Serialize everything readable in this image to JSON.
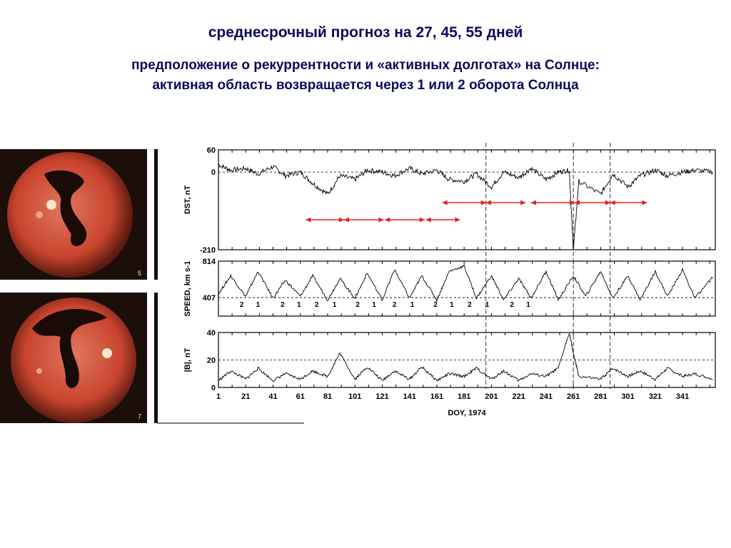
{
  "slide": {
    "title": "среднесрочный прогноз на 27, 45, 55 дней",
    "subtitle_line1": "предположение о рекуррентности и «активных долготах» на Солнце:",
    "subtitle_line2": "активная область возвращается через 1 или 2 оборота Солнца"
  },
  "images": [
    {
      "label": "5"
    },
    {
      "label": "7"
    }
  ],
  "chart_data": [
    {
      "type": "line",
      "ylabel": "DST, nT",
      "ylim": [
        -210,
        60
      ],
      "yticks": [
        "60",
        "0",
        "-210"
      ],
      "reference_line": 0,
      "x": [
        1,
        10,
        21,
        30,
        41,
        50,
        61,
        70,
        81,
        90,
        101,
        110,
        121,
        130,
        141,
        150,
        161,
        170,
        181,
        190,
        201,
        210,
        221,
        230,
        241,
        250,
        258,
        261,
        265,
        281,
        290,
        301,
        310,
        321,
        330,
        341,
        350,
        364
      ],
      "values": [
        20,
        5,
        10,
        -5,
        15,
        -10,
        0,
        -30,
        -60,
        -10,
        -20,
        5,
        0,
        -10,
        10,
        -5,
        5,
        -20,
        -25,
        -5,
        -40,
        0,
        -15,
        10,
        -20,
        0,
        5,
        -210,
        -25,
        -60,
        -5,
        -40,
        -10,
        5,
        -10,
        0,
        5,
        0
      ],
      "arrows_day_ranges": [
        [
          65,
          93
        ],
        [
          93,
          122
        ],
        [
          123,
          152
        ],
        [
          153,
          178
        ],
        [
          165,
          197
        ],
        [
          197,
          226
        ],
        [
          230,
          262
        ],
        [
          262,
          288
        ],
        [
          288,
          315
        ]
      ]
    },
    {
      "type": "line",
      "ylabel": "SPEED, km s-1",
      "ylim": [
        200,
        814
      ],
      "yticks": [
        "814",
        "407"
      ],
      "reference_line": 407,
      "x": [
        1,
        10,
        21,
        30,
        41,
        50,
        61,
        70,
        81,
        90,
        101,
        110,
        121,
        130,
        141,
        150,
        161,
        170,
        181,
        190,
        201,
        210,
        221,
        230,
        241,
        250,
        261,
        270,
        281,
        290,
        301,
        310,
        321,
        330,
        341,
        350,
        364
      ],
      "values": [
        450,
        650,
        420,
        700,
        400,
        600,
        420,
        650,
        380,
        620,
        400,
        680,
        380,
        720,
        400,
        650,
        380,
        700,
        760,
        400,
        650,
        380,
        620,
        400,
        700,
        380,
        650,
        420,
        700,
        400,
        650,
        380,
        700,
        420,
        720,
        400,
        650
      ],
      "sector_marks": [
        {
          "day": 18,
          "label": "2"
        },
        {
          "day": 30,
          "label": "1"
        },
        {
          "day": 48,
          "label": "2"
        },
        {
          "day": 60,
          "label": "1"
        },
        {
          "day": 73,
          "label": "2"
        },
        {
          "day": 86,
          "label": "1"
        },
        {
          "day": 103,
          "label": "2"
        },
        {
          "day": 115,
          "label": "1"
        },
        {
          "day": 130,
          "label": "2"
        },
        {
          "day": 143,
          "label": "1"
        },
        {
          "day": 160,
          "label": "2"
        },
        {
          "day": 172,
          "label": "1"
        },
        {
          "day": 185,
          "label": "2"
        },
        {
          "day": 198,
          "label": "1"
        },
        {
          "day": 216,
          "label": "2"
        },
        {
          "day": 228,
          "label": "1"
        }
      ]
    },
    {
      "type": "line",
      "ylabel": "|B|, nT",
      "ylim": [
        0,
        40
      ],
      "yticks": [
        "40",
        "20",
        "0"
      ],
      "reference_line": 20,
      "x": [
        1,
        10,
        21,
        30,
        41,
        50,
        61,
        70,
        81,
        90,
        101,
        110,
        121,
        130,
        141,
        150,
        161,
        170,
        181,
        190,
        201,
        210,
        221,
        230,
        241,
        250,
        258,
        261,
        265,
        281,
        290,
        301,
        310,
        321,
        330,
        341,
        350,
        364
      ],
      "values": [
        5,
        12,
        6,
        14,
        5,
        10,
        6,
        12,
        8,
        25,
        6,
        15,
        5,
        12,
        6,
        15,
        5,
        10,
        8,
        14,
        6,
        12,
        5,
        10,
        8,
        14,
        40,
        25,
        8,
        6,
        14,
        8,
        12,
        6,
        14,
        8,
        10,
        6
      ],
      "xticks": [
        "1",
        "21",
        "41",
        "61",
        "81",
        "101",
        "121",
        "141",
        "161",
        "181",
        "201",
        "221",
        "241",
        "261",
        "281",
        "301",
        "321",
        "341"
      ],
      "xlabel": "DOY, 1974"
    }
  ],
  "colors": {
    "title": "#0a0a5a",
    "arrow": "#e02020",
    "sun_dark": "#1c0f0a",
    "sun_red": "#c8442e"
  }
}
